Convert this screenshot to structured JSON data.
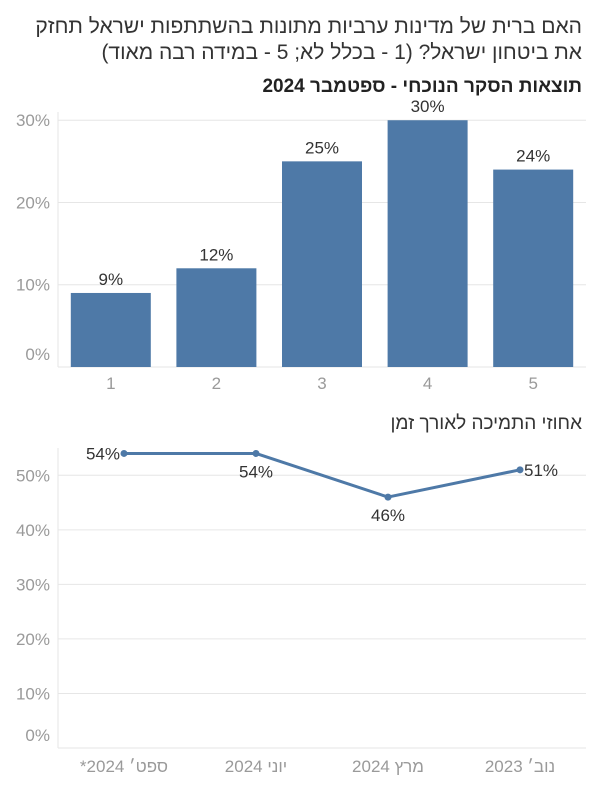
{
  "title": "האם ברית של מדינות ערביות מתונות בהשתתפות ישראל תחזק את ביטחון ישראל? (1 - בכלל לא; 5 - במידה רבה מאוד)",
  "subtitle": "תוצאות הסקר הנוכחי - ספטמבר 2024",
  "colors": {
    "accent": "#4e79a7",
    "grid": "#e6e6e6",
    "tick": "#9a9a9a"
  },
  "chart_data": [
    {
      "type": "bar",
      "title": "תוצאות הסקר הנוכחי - ספטמבר 2024",
      "categories": [
        "1",
        "2",
        "3",
        "4",
        "5"
      ],
      "values": [
        9,
        12,
        25,
        30,
        24
      ],
      "value_labels": [
        "9%",
        "12%",
        "25%",
        "30%",
        "24%"
      ],
      "yticks": [
        "0%",
        "10%",
        "20%",
        "30%"
      ],
      "ytick_values": [
        0,
        10,
        20,
        30
      ],
      "ylim": [
        0,
        31
      ],
      "grid": true
    },
    {
      "type": "line",
      "title": "אחוזי התמיכה לאורך זמן",
      "categories": [
        "ספט׳ 2024*",
        "יוני 2024",
        "מרץ 2024",
        "נוב׳ 2023"
      ],
      "values": [
        54,
        54,
        46,
        51
      ],
      "value_labels": [
        "54%",
        "54%",
        "46%",
        "51%"
      ],
      "yticks": [
        "0%",
        "10%",
        "20%",
        "30%",
        "40%",
        "50%"
      ],
      "ytick_values": [
        0,
        10,
        20,
        30,
        40,
        50
      ],
      "ylim": [
        0,
        55
      ],
      "grid": true
    }
  ]
}
